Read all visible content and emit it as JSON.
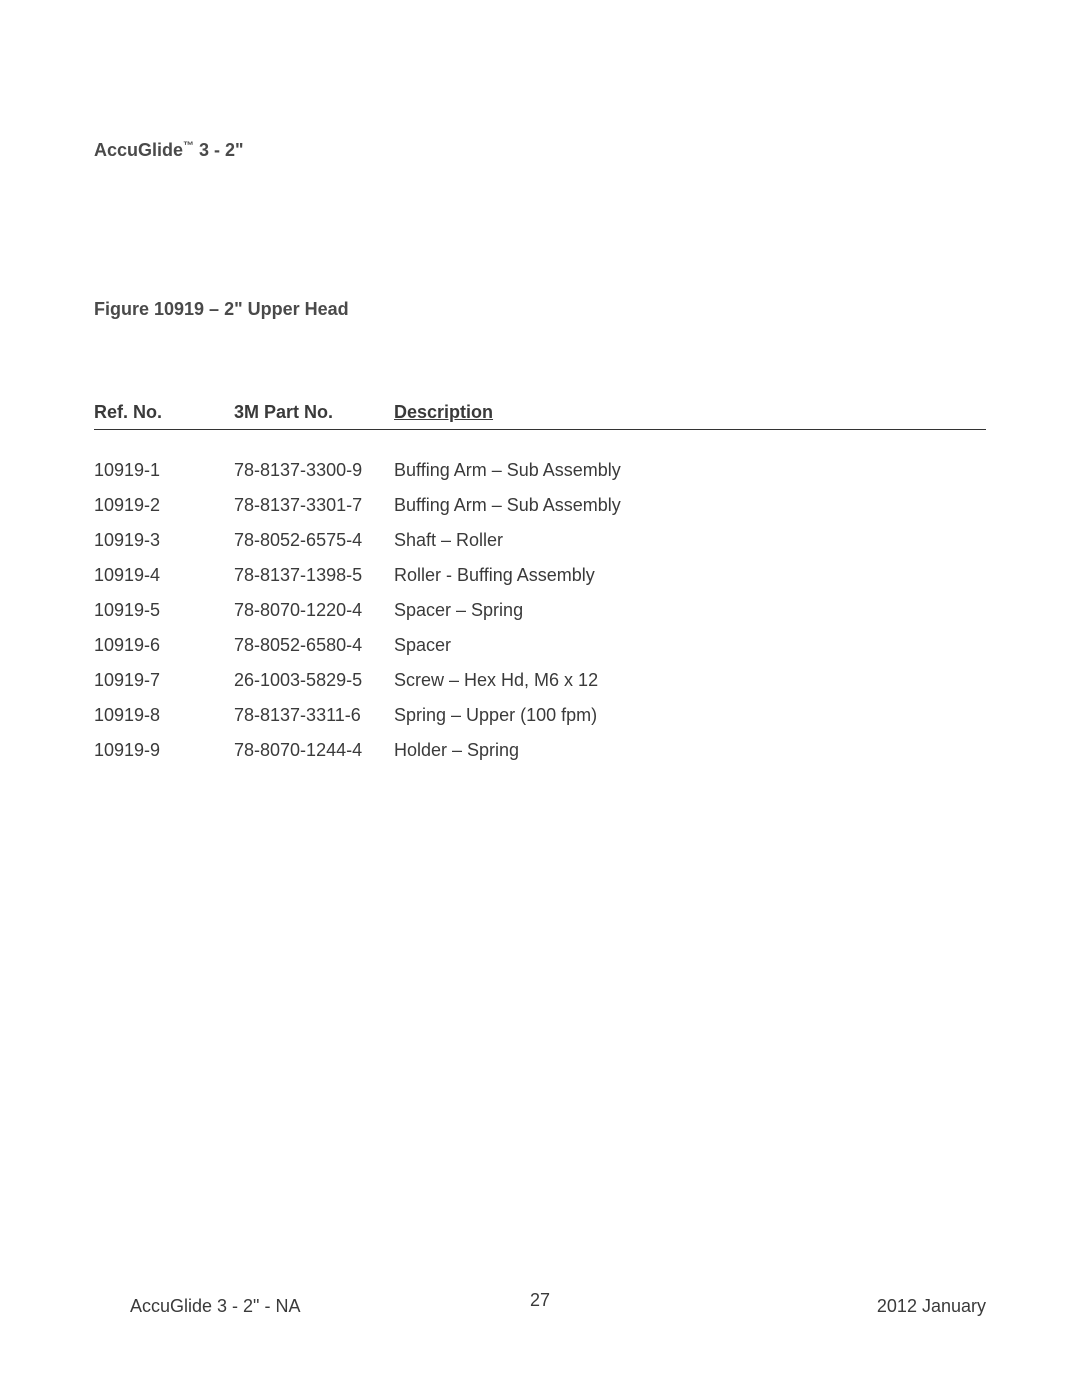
{
  "header": {
    "product_name": "AccuGlide",
    "tm_symbol": "™",
    "product_suffix": " 3 - 2\""
  },
  "figure": {
    "title": "Figure 10919 – 2\" Upper Head"
  },
  "table": {
    "columns": {
      "ref": "Ref. No.",
      "part": "3M Part No.",
      "desc": "Description"
    },
    "rows": [
      {
        "ref": "10919-1",
        "part": "78-8137-3300-9",
        "desc": "Buffing Arm – Sub Assembly"
      },
      {
        "ref": "10919-2",
        "part": "78-8137-3301-7",
        "desc": "Buffing Arm – Sub Assembly"
      },
      {
        "ref": "10919-3",
        "part": "78-8052-6575-4",
        "desc": "Shaft – Roller"
      },
      {
        "ref": "10919-4",
        "part": "78-8137-1398-5",
        "desc": "Roller - Buffing Assembly"
      },
      {
        "ref": "10919-5",
        "part": "78-8070-1220-4",
        "desc": "Spacer – Spring"
      },
      {
        "ref": "10919-6",
        "part": "78-8052-6580-4",
        "desc": "Spacer"
      },
      {
        "ref": "10919-7",
        "part": "26-1003-5829-5",
        "desc": "Screw – Hex Hd, M6 x 12"
      },
      {
        "ref": "10919-8",
        "part": "78-8137-3311-6",
        "desc": "Spring – Upper (100 fpm)"
      },
      {
        "ref": "10919-9",
        "part": "78-8070-1244-4",
        "desc": "Holder – Spring"
      }
    ]
  },
  "footer": {
    "left": "AccuGlide 3 - 2\" - NA",
    "page": "27",
    "right": "2012 January"
  }
}
